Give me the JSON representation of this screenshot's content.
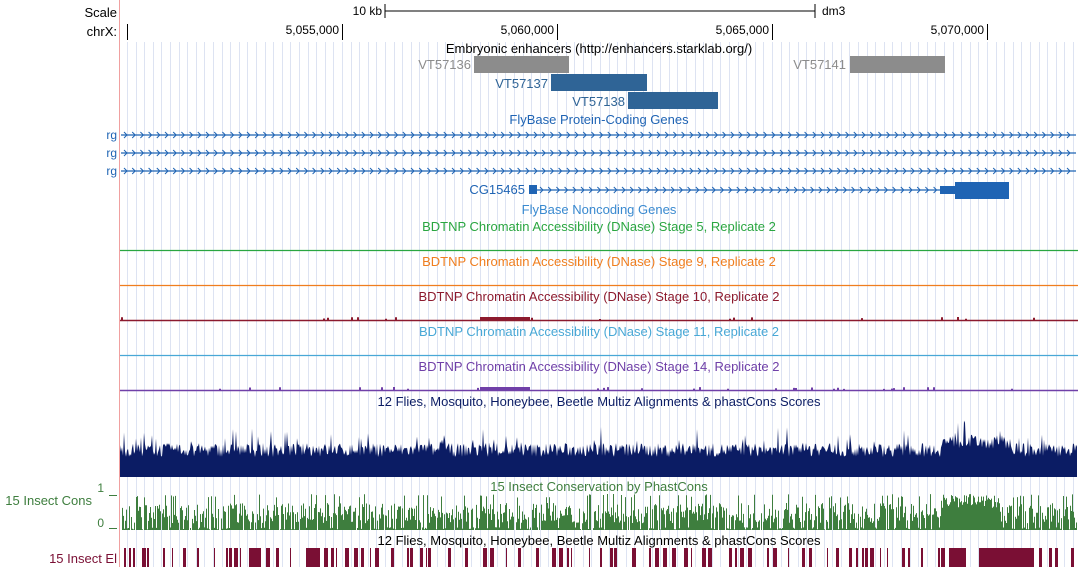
{
  "ruler": {
    "scale_label": "Scale",
    "scale_bar_label": "10 kb",
    "assembly": "dm3",
    "chrom_label": "chrX:",
    "ticks": [
      "5,055,000",
      "5,060,000",
      "5,065,000",
      "5,070,000"
    ]
  },
  "tracks": {
    "enhancers": {
      "title": "Embryonic enhancers (http://enhancers.starklab.org/)",
      "items": [
        {
          "name": "VT57136",
          "color": "#8c8c8c"
        },
        {
          "name": "VT57137",
          "color": "#2f6496"
        },
        {
          "name": "VT57138",
          "color": "#2f6496"
        },
        {
          "name": "VT57141",
          "color": "#8c8c8c"
        }
      ]
    },
    "coding_genes": {
      "title": "FlyBase Protein-Coding Genes",
      "color": "#1f64b4",
      "rows": [
        "rg",
        "rg",
        "rg"
      ]
    },
    "noncoding_genes": {
      "title": "FlyBase Noncoding Genes",
      "gene": "CG15465",
      "color": "#1f64b4"
    },
    "dnase": [
      {
        "title": "BDTNP Chromatin Accessibility (DNase) Stage 5, Replicate 2",
        "color": "#2aa640"
      },
      {
        "title": "BDTNP Chromatin Accessibility (DNase) Stage 9, Replicate 2",
        "color": "#f07e1e"
      },
      {
        "title": "BDTNP Chromatin Accessibility (DNase) Stage 10, Replicate 2",
        "color": "#8c1a2e"
      },
      {
        "title": "BDTNP Chromatin Accessibility (DNase) Stage 11, Replicate 2",
        "color": "#48a8d6"
      },
      {
        "title": "BDTNP Chromatin Accessibility (DNase) Stage 14, Replicate 2",
        "color": "#7040a8"
      }
    ],
    "multiz": {
      "title": "12 Flies, Mosquito, Honeybee, Beetle Multiz Alignments & phastCons Scores",
      "color": "#0b1c64"
    },
    "insect_cons": {
      "title": "15 Insect Conservation by PhastCons",
      "side_label": "15 Insect Cons",
      "y_max_label": "1",
      "y_min_label": "0",
      "color": "#3e7e3e"
    },
    "insect_el": {
      "title": "12 Flies, Mosquito, Honeybee, Beetle Multiz Alignments & phastCons Scores",
      "side_label": "15 Insect El",
      "color": "#7a0f34"
    }
  }
}
